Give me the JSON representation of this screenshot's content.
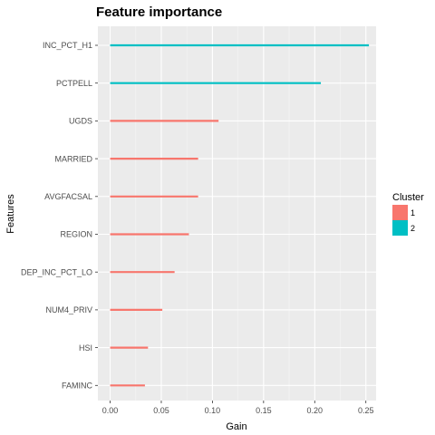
{
  "chart_data": {
    "type": "bar",
    "orientation": "horizontal",
    "title": "Feature importance",
    "xlabel": "Gain",
    "ylabel": "Features",
    "xlim": [
      -0.012,
      0.26
    ],
    "xticks": [
      0.0,
      0.05,
      0.1,
      0.15,
      0.2,
      0.25
    ],
    "xtick_labels": [
      "0.00",
      "0.05",
      "0.10",
      "0.15",
      "0.20",
      "0.25"
    ],
    "grid": true,
    "background": "#ebebeb",
    "legend": {
      "title": "Cluster",
      "position": "right",
      "entries": [
        {
          "label": "1",
          "color": "#f8766d"
        },
        {
          "label": "2",
          "color": "#00bfc4"
        }
      ]
    },
    "categories": [
      "INC_PCT_H1",
      "PCTPELL",
      "UGDS",
      "MARRIED",
      "AVGFACSAL",
      "REGION",
      "DEP_INC_PCT_LO",
      "NUM4_PRIV",
      "HSI",
      "FAMINC"
    ],
    "values": [
      0.253,
      0.206,
      0.106,
      0.086,
      0.086,
      0.077,
      0.063,
      0.051,
      0.037,
      0.034
    ],
    "clusters": [
      "2",
      "2",
      "1",
      "1",
      "1",
      "1",
      "1",
      "1",
      "1",
      "1"
    ]
  }
}
